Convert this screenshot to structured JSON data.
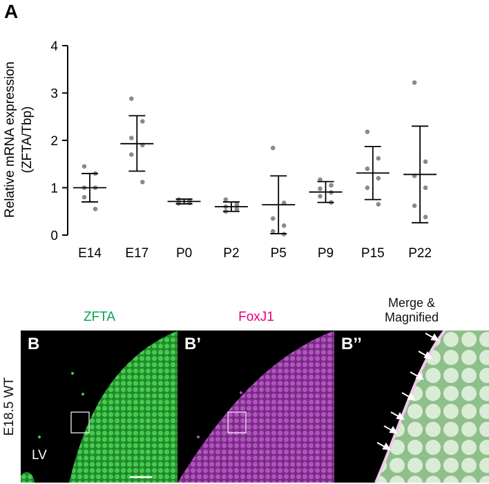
{
  "panelA": {
    "letter": "A",
    "chart_data": {
      "type": "scatter",
      "ylabel_line1": "Relative mRNA expression",
      "ylabel_line2": "(ZFTA/Tbp)",
      "xlabel": "",
      "ylim": [
        0,
        4
      ],
      "yticks": [
        0,
        1,
        2,
        3,
        4
      ],
      "categories": [
        "E14",
        "E17",
        "P0",
        "P2",
        "P5",
        "P9",
        "P15",
        "P22"
      ],
      "groups": [
        {
          "name": "E14",
          "mean": 1.0,
          "sd_low": 0.7,
          "sd_high": 1.3,
          "points": [
            1.45,
            1.3,
            1.0,
            1.0,
            0.8,
            0.55
          ]
        },
        {
          "name": "E17",
          "mean": 1.93,
          "sd_low": 1.35,
          "sd_high": 2.52,
          "points": [
            2.88,
            2.4,
            2.05,
            1.9,
            1.7,
            1.12
          ]
        },
        {
          "name": "P0",
          "mean": 0.71,
          "sd_low": 0.66,
          "sd_high": 0.76,
          "points": [
            0.75,
            0.73,
            0.7,
            0.68,
            0.67,
            0.72
          ]
        },
        {
          "name": "P2",
          "mean": 0.6,
          "sd_low": 0.5,
          "sd_high": 0.7,
          "points": [
            0.75,
            0.65,
            0.6,
            0.55,
            0.5,
            0.62
          ]
        },
        {
          "name": "P5",
          "mean": 0.64,
          "sd_low": 0.03,
          "sd_high": 1.25,
          "points": [
            1.84,
            0.68,
            0.35,
            0.2,
            0.08,
            0.02
          ]
        },
        {
          "name": "P9",
          "mean": 0.91,
          "sd_low": 0.69,
          "sd_high": 1.13,
          "points": [
            1.17,
            1.05,
            0.98,
            0.9,
            0.82,
            0.69
          ]
        },
        {
          "name": "P15",
          "mean": 1.31,
          "sd_low": 0.75,
          "sd_high": 1.87,
          "points": [
            2.18,
            1.62,
            1.4,
            1.2,
            1.0,
            0.65
          ]
        },
        {
          "name": "P22",
          "mean": 1.28,
          "sd_low": 0.26,
          "sd_high": 2.3,
          "points": [
            3.22,
            1.55,
            1.25,
            1.0,
            0.62,
            0.38
          ]
        }
      ],
      "colors": {
        "points": "#8a8a8a",
        "bars": "#000000"
      }
    }
  },
  "panelB": {
    "side_label": "E18.5 WT",
    "images": [
      {
        "letter": "B",
        "title": "ZFTA",
        "title_color": "#00a651",
        "corner": "LV"
      },
      {
        "letter": "B’",
        "title": "FoxJ1",
        "title_color": "#e6007e"
      },
      {
        "letter": "B’’",
        "title_line1": "Merge &",
        "title_line2": "Magnified",
        "title_color": "#111111"
      }
    ]
  }
}
